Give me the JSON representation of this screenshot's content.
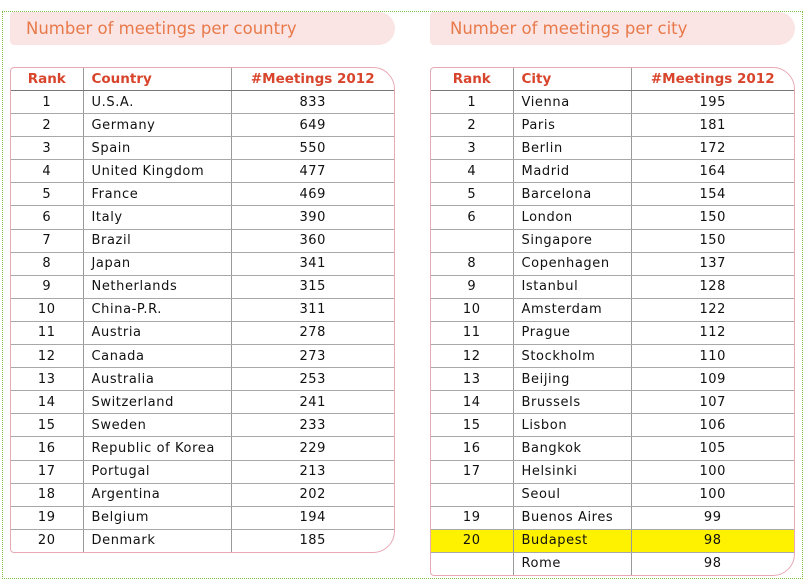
{
  "country_panel": {
    "title": "Number of meetings per country",
    "headers": {
      "rank": "Rank",
      "name": "Country",
      "meetings": "#Meetings 2012"
    },
    "rows": [
      {
        "rank": "1",
        "name": "U.S.A.",
        "meetings": "833"
      },
      {
        "rank": "2",
        "name": "Germany",
        "meetings": "649"
      },
      {
        "rank": "3",
        "name": "Spain",
        "meetings": "550"
      },
      {
        "rank": "4",
        "name": "United Kingdom",
        "meetings": "477"
      },
      {
        "rank": "5",
        "name": "France",
        "meetings": "469"
      },
      {
        "rank": "6",
        "name": "Italy",
        "meetings": "390"
      },
      {
        "rank": "7",
        "name": "Brazil",
        "meetings": "360"
      },
      {
        "rank": "8",
        "name": "Japan",
        "meetings": "341"
      },
      {
        "rank": "9",
        "name": "Netherlands",
        "meetings": "315"
      },
      {
        "rank": "10",
        "name": "China-P.R.",
        "meetings": "311"
      },
      {
        "rank": "11",
        "name": "Austria",
        "meetings": "278"
      },
      {
        "rank": "12",
        "name": "Canada",
        "meetings": "273"
      },
      {
        "rank": "13",
        "name": "Australia",
        "meetings": "253"
      },
      {
        "rank": "14",
        "name": "Switzerland",
        "meetings": "241"
      },
      {
        "rank": "15",
        "name": "Sweden",
        "meetings": "233"
      },
      {
        "rank": "16",
        "name": "Republic of Korea",
        "meetings": "229"
      },
      {
        "rank": "17",
        "name": "Portugal",
        "meetings": "213"
      },
      {
        "rank": "18",
        "name": "Argentina",
        "meetings": "202"
      },
      {
        "rank": "19",
        "name": "Belgium",
        "meetings": "194"
      },
      {
        "rank": "20",
        "name": "Denmark",
        "meetings": "185"
      }
    ]
  },
  "city_panel": {
    "title": "Number of meetings per city",
    "headers": {
      "rank": "Rank",
      "name": "City",
      "meetings": "#Meetings 2012"
    },
    "highlight_color": "#fff200",
    "rows": [
      {
        "rank": "1",
        "name": "Vienna",
        "meetings": "195"
      },
      {
        "rank": "2",
        "name": "Paris",
        "meetings": "181"
      },
      {
        "rank": "3",
        "name": "Berlin",
        "meetings": "172"
      },
      {
        "rank": "4",
        "name": "Madrid",
        "meetings": "164"
      },
      {
        "rank": "5",
        "name": "Barcelona",
        "meetings": "154"
      },
      {
        "rank": "6",
        "name": "London",
        "meetings": "150"
      },
      {
        "rank": "",
        "name": "Singapore",
        "meetings": "150"
      },
      {
        "rank": "8",
        "name": "Copenhagen",
        "meetings": "137"
      },
      {
        "rank": "9",
        "name": "Istanbul",
        "meetings": "128"
      },
      {
        "rank": "10",
        "name": "Amsterdam",
        "meetings": "122"
      },
      {
        "rank": "11",
        "name": "Prague",
        "meetings": "112"
      },
      {
        "rank": "12",
        "name": "Stockholm",
        "meetings": "110"
      },
      {
        "rank": "13",
        "name": "Beijing",
        "meetings": "109"
      },
      {
        "rank": "14",
        "name": "Brussels",
        "meetings": "107"
      },
      {
        "rank": "15",
        "name": "Lisbon",
        "meetings": "106"
      },
      {
        "rank": "16",
        "name": "Bangkok",
        "meetings": "105"
      },
      {
        "rank": "17",
        "name": "Helsinki",
        "meetings": "100"
      },
      {
        "rank": "",
        "name": "Seoul",
        "meetings": "100"
      },
      {
        "rank": "19",
        "name": "Buenos Aires",
        "meetings": "99"
      },
      {
        "rank": "20",
        "name": "Budapest",
        "meetings": "98",
        "highlighted": true
      },
      {
        "rank": "",
        "name": "Rome",
        "meetings": "98"
      }
    ]
  }
}
